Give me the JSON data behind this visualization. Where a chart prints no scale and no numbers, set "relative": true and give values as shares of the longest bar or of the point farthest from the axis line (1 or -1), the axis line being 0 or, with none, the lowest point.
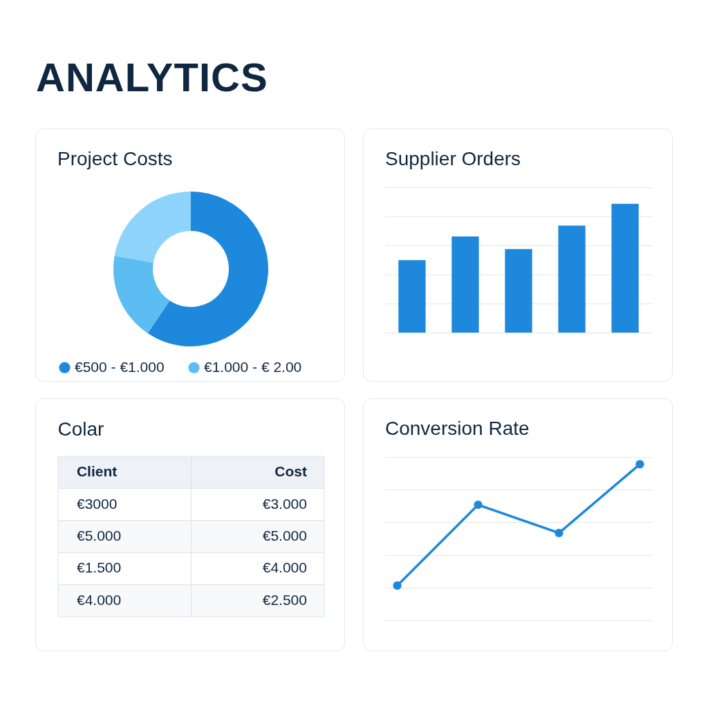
{
  "chart_data": [
    {
      "type": "other",
      "title": "ANALYTICS"
    },
    {
      "type": "donut",
      "title": "Project Costs",
      "categories": [
        "€500 - €1.000",
        "€1.000 - € 2.00",
        null
      ],
      "values": [
        59.4,
        18.3,
        22.3
      ],
      "colors": [
        "#1e88dc",
        "#5bbdf2",
        "#8dd3fa"
      ],
      "legend": "bottom"
    },
    {
      "type": "bar",
      "title": "Supplier Orders",
      "categories": [
        null,
        null,
        null,
        null,
        null
      ],
      "values": [
        0.563,
        0.746,
        0.649,
        0.831,
        1
      ],
      "color": "#1e88dc",
      "relative": true,
      "grid": "y"
    },
    {
      "type": "other",
      "title": "Colar",
      "annotations": [
        "Client",
        "Cost",
        "€3000",
        "€3.000",
        "€5.000",
        "€5.000",
        "€1.500",
        "€4.000",
        "€4.000",
        "€2.500"
      ]
    },
    {
      "type": "line",
      "title": "Conversion Rate",
      "categories": [
        null,
        null,
        null,
        null
      ],
      "values": [
        0.222,
        0.74,
        0.559,
        1
      ],
      "color": "#1e88dc",
      "relative": true,
      "grid": "y",
      "marker": "circle",
      "line_style": "solid"
    }
  ]
}
